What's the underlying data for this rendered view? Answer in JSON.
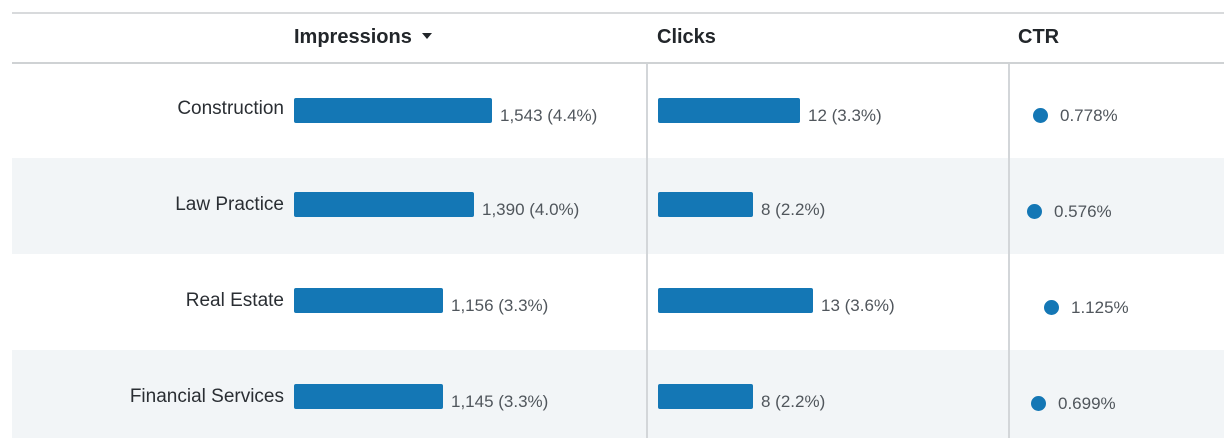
{
  "header": {
    "impressions": "Impressions",
    "clicks": "Clicks",
    "ctr": "CTR"
  },
  "colors": {
    "bar": "#1477b5",
    "row_alt": "#f2f5f7"
  },
  "rows": [
    {
      "label": "Construction",
      "impressions_text": "1,543 (4.4%)",
      "impressions_pct": 4.4,
      "clicks_text": "12 (3.3%)",
      "clicks_pct": 3.3,
      "ctr_text": "0.778%",
      "ctr": 0.778
    },
    {
      "label": "Law Practice",
      "impressions_text": "1,390 (4.0%)",
      "impressions_pct": 4.0,
      "clicks_text": "8 (2.2%)",
      "clicks_pct": 2.2,
      "ctr_text": "0.576%",
      "ctr": 0.576
    },
    {
      "label": "Real Estate",
      "impressions_text": "1,156 (3.3%)",
      "impressions_pct": 3.3,
      "clicks_text": "13 (3.6%)",
      "clicks_pct": 3.6,
      "ctr_text": "1.125%",
      "ctr": 1.125
    },
    {
      "label": "Financial Services",
      "impressions_text": "1,145 (3.3%)",
      "impressions_pct": 3.3,
      "clicks_text": "8 (2.2%)",
      "clicks_pct": 2.2,
      "ctr_text": "0.699%",
      "ctr": 0.699
    }
  ]
}
